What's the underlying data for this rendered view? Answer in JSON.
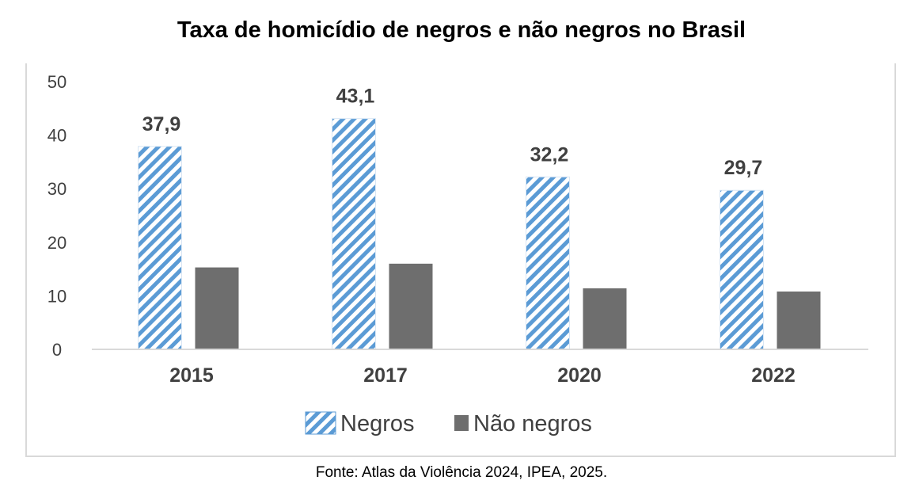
{
  "title": "Taxa de homicídio de negros e não negros no Brasil",
  "source": "Fonte: Atlas da Violência 2024, IPEA, 2025.",
  "colors": {
    "negros": "#5b9bd5",
    "nao_negros": "#6e6e6e",
    "axis": "#d9d9d9"
  },
  "chart_data": {
    "type": "bar",
    "categories": [
      "2015",
      "2017",
      "2020",
      "2022"
    ],
    "series": [
      {
        "name": "Negros",
        "values": [
          37.9,
          43.1,
          32.2,
          29.7
        ],
        "labels": [
          "37,9",
          "43,1",
          "32,2",
          "29,7"
        ],
        "pattern": "diagonal-stripes"
      },
      {
        "name": "Não negros",
        "values": [
          15.3,
          16.0,
          11.4,
          10.8
        ]
      }
    ],
    "ylim": [
      0,
      50
    ],
    "yticks": [
      "0",
      "10",
      "20",
      "30",
      "40",
      "50"
    ],
    "legend": "bottom",
    "grid": false
  }
}
